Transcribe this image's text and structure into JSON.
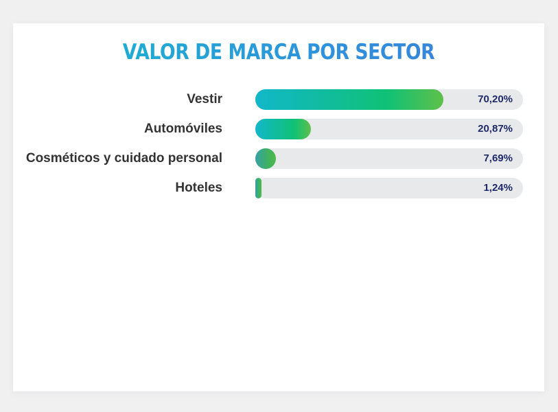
{
  "chart_data": {
    "type": "bar",
    "orientation": "horizontal",
    "title": "VALOR DE MARCA POR SECTOR",
    "categories": [
      "Vestir",
      "Automóviles",
      "Cosméticos y cuidado personal",
      "Hoteles"
    ],
    "values": [
      70.2,
      20.87,
      7.69,
      1.24
    ],
    "value_labels": [
      "70,20%",
      "20,87%",
      "7,69%",
      "1,24%"
    ],
    "unit": "%",
    "xlim": [
      0,
      100
    ],
    "grid": false,
    "legend": "none",
    "colors": {
      "title_start": "#18b5cf",
      "title_end": "#3a7fd8",
      "bar_start": "#12b7c9",
      "bar_mid": "#0fc176",
      "bar_end": "#5fc04a",
      "track": "#e8e9ea",
      "value_text": "#1f2a6b",
      "label_text": "#333333"
    }
  }
}
